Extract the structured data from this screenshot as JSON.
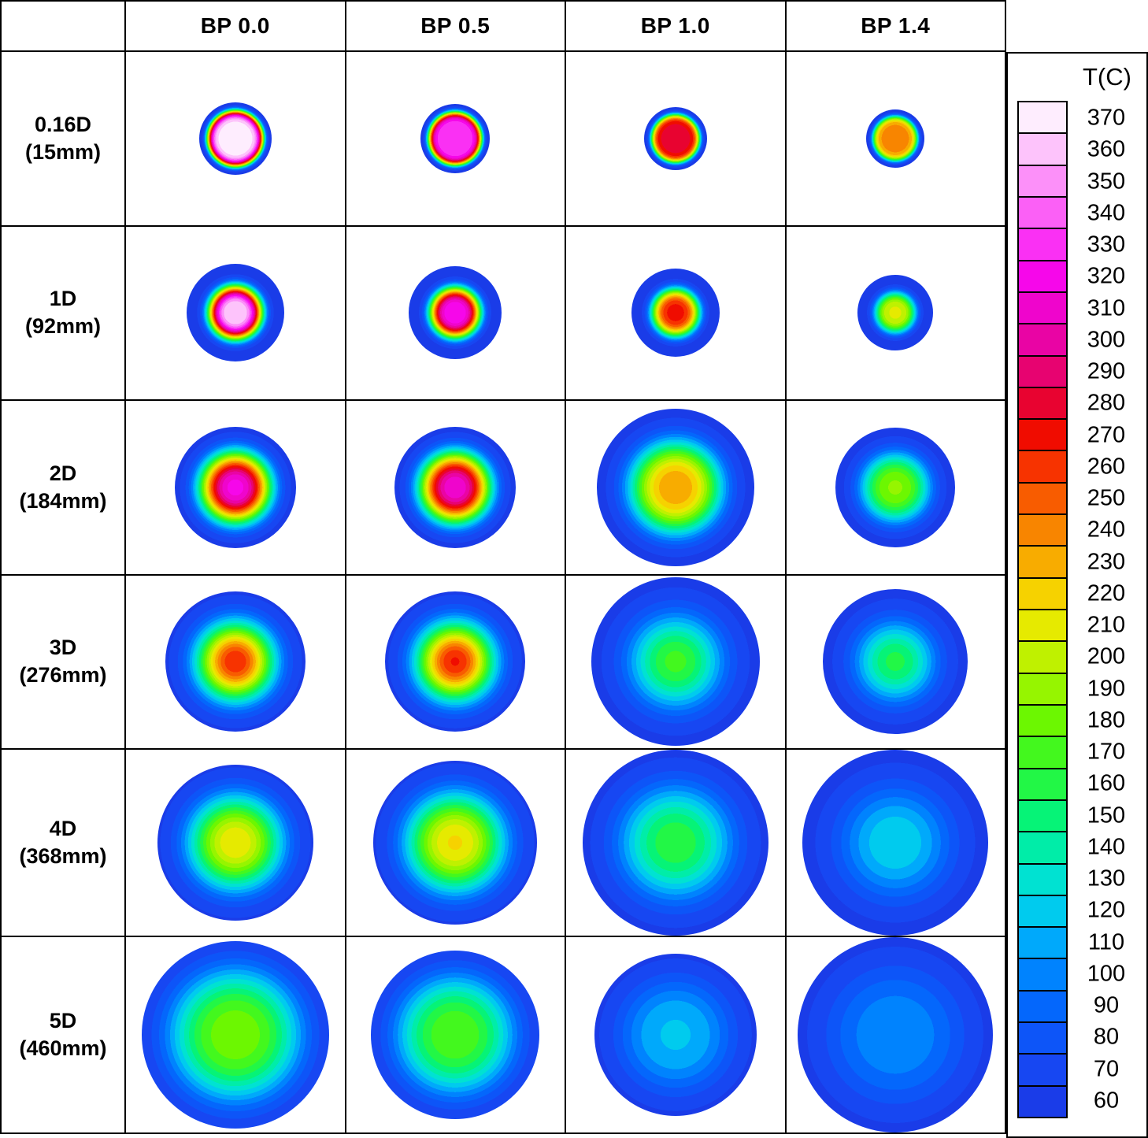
{
  "chart_data": {
    "type": "heatmap",
    "columns": [
      "BP 0.0",
      "BP 0.5",
      "BP 1.0",
      "BP 1.4"
    ],
    "rows": [
      {
        "label": "0.16D",
        "sublabel": "(15mm)",
        "s": 0.78,
        "p": 8,
        "cells": [
          {
            "tc": 370,
            "d": 92
          },
          {
            "tc": 333,
            "d": 88
          },
          {
            "tc": 278,
            "d": 80
          },
          {
            "tc": 238,
            "d": 74
          }
        ]
      },
      {
        "label": "1D",
        "sublabel": "(92mm)",
        "s": 0.55,
        "p": 4,
        "cells": [
          {
            "tc": 365,
            "d": 124
          },
          {
            "tc": 323,
            "d": 118
          },
          {
            "tc": 268,
            "d": 112
          },
          {
            "tc": 206,
            "d": 96
          }
        ]
      },
      {
        "label": "2D",
        "sublabel": "(184mm)",
        "s": 0.58,
        "p": 3,
        "cells": [
          {
            "tc": 318,
            "d": 154
          },
          {
            "tc": 312,
            "d": 154
          },
          {
            "tc": 233,
            "d": 200
          },
          {
            "tc": 186,
            "d": 152
          }
        ]
      },
      {
        "label": "3D",
        "sublabel": "(276mm)",
        "s": 0.55,
        "p": 2.4,
        "cells": [
          {
            "tc": 264,
            "d": 178
          },
          {
            "tc": 266,
            "d": 178
          },
          {
            "tc": 168,
            "d": 214
          },
          {
            "tc": 158,
            "d": 184
          }
        ]
      },
      {
        "label": "4D",
        "sublabel": "(368mm)",
        "s": 0.6,
        "p": 2.6,
        "cells": [
          {
            "tc": 213,
            "d": 198
          },
          {
            "tc": 216,
            "d": 208
          },
          {
            "tc": 162,
            "d": 236
          },
          {
            "tc": 123,
            "d": 236
          }
        ]
      },
      {
        "label": "5D",
        "sublabel": "(460mm)",
        "s": 0.7,
        "p": 3,
        "cells": [
          {
            "tc": 181,
            "d": 238
          },
          {
            "tc": 172,
            "d": 214
          },
          {
            "tc": 116,
            "d": 206
          },
          {
            "tc": 102,
            "d": 248
          }
        ]
      }
    ],
    "colorbar": {
      "title": "T(C)",
      "min": 60,
      "max": 370,
      "step": 10,
      "levels": [
        370,
        360,
        350,
        340,
        330,
        320,
        310,
        300,
        290,
        280,
        270,
        260,
        250,
        240,
        230,
        220,
        210,
        200,
        190,
        180,
        170,
        160,
        150,
        140,
        130,
        120,
        110,
        100,
        90,
        80,
        70,
        60
      ],
      "colors": [
        "#1A3CE8",
        "#1747F2",
        "#0D55F8",
        "#0467FC",
        "#0083FE",
        "#00A9FB",
        "#00CBEE",
        "#00E2D2",
        "#00EDA8",
        "#06F377",
        "#22F746",
        "#43F81E",
        "#6CF701",
        "#96F500",
        "#BFF100",
        "#E6EA00",
        "#F6D200",
        "#F8AC00",
        "#F88500",
        "#F85C00",
        "#F73300",
        "#F00C00",
        "#E80330",
        "#E70370",
        "#E904A4",
        "#EF05CC",
        "#F607EA",
        "#FA30F4",
        "#FB60F6",
        "#FC90F9",
        "#FDC3FB",
        "#FEEDFE"
      ]
    }
  }
}
